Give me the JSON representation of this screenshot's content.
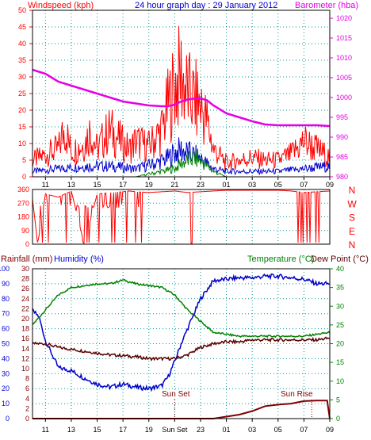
{
  "title": "24 hour graph day : 29 January 2012",
  "colors": {
    "wind": "#ff0000",
    "wind_avg": "#0000cc",
    "wind_low": "#008000",
    "barometer": "#e600e6",
    "direction": "#ff0000",
    "rain": "#800000",
    "humidity": "#0000cc",
    "temperature": "#008000",
    "dewpoint": "#5a0000",
    "title": "#0000cc",
    "grid": "#009999",
    "axis": "#000000",
    "sun_marker": "#800000"
  },
  "time_ticks": [
    "11",
    "13",
    "15",
    "17",
    "19",
    "21",
    "23",
    "01",
    "03",
    "05",
    "07",
    "09"
  ],
  "panel_wind": {
    "left_label": "Windspeed (kph)",
    "right_label": "Barometer (hba)",
    "left_ticks": [
      "0",
      "5",
      "10",
      "15",
      "20",
      "25",
      "30",
      "35",
      "40",
      "45",
      "50"
    ],
    "right_ticks": [
      "980",
      "985",
      "990",
      "995",
      "1000",
      "1005",
      "1010",
      "1015",
      "1020"
    ]
  },
  "panel_direction": {
    "left_ticks": [
      "0",
      "90",
      "180",
      "270",
      "360"
    ],
    "compass": [
      "N",
      "W",
      "S",
      "E",
      "N"
    ]
  },
  "panel_bottom": {
    "rain_label": "Rainfall (mm)",
    "humidity_label": "Humidity (%)",
    "temp_label": "Temperature (°C)",
    "dew_label": "Dew Point (°C)",
    "humidity_ticks": [
      "0",
      "10",
      "20",
      "30",
      "40",
      "50",
      "60",
      "70",
      "80",
      "90",
      "100"
    ],
    "rain_ticks": [
      "0",
      "2",
      "4",
      "6",
      "8",
      "10",
      "12",
      "14",
      "16",
      "18",
      "20",
      "22",
      "24",
      "26",
      "28",
      "30"
    ],
    "temp_ticks": [
      "0",
      "5",
      "10",
      "15",
      "20",
      "25",
      "30",
      "35",
      "40"
    ],
    "sunset_label": "Sun Set",
    "sunrise_label": "Sun Rise",
    "sunset_axis_label": "Sun Set",
    "bottom_ticks": [
      "11",
      "13",
      "15",
      "17",
      "19",
      "Sun Set",
      "23",
      "01",
      "03",
      "05",
      "07",
      "09"
    ]
  },
  "chart_data": [
    {
      "type": "line",
      "title": "24 hour graph day : 29 January 2012",
      "ylabel": "Windspeed (kph)",
      "y2label": "Barometer (hba)",
      "x_unit": "hour",
      "ylim": [
        0,
        50
      ],
      "y2lim": [
        980,
        1022
      ],
      "series": [
        {
          "name": "Windspeed (kph)",
          "axis": "left",
          "x": [
            10.0,
            11.0,
            12.0,
            12.5,
            13.0,
            14.0,
            14.5,
            15.0,
            15.5,
            16.0,
            17.0,
            17.5,
            18.0,
            19.0,
            20.0,
            20.5,
            21.0,
            21.5,
            22.0,
            23.0,
            23.5,
            24.0,
            25.0,
            26.0,
            27.0,
            28.0,
            29.0,
            30.0,
            31.0,
            32.0,
            33.0
          ],
          "y": [
            6,
            8,
            10,
            18,
            9,
            12,
            17,
            10,
            14,
            17,
            12,
            10,
            13,
            11,
            17,
            26,
            33,
            37,
            30,
            26,
            20,
            10,
            5,
            6,
            7,
            6,
            6,
            8,
            13,
            10,
            7
          ]
        },
        {
          "name": "Average wind",
          "axis": "left",
          "x": [
            10.0,
            12.0,
            14.0,
            16.0,
            18.0,
            19.5,
            20.5,
            21.0,
            21.5,
            22.0,
            23.0,
            23.5,
            24.0,
            25.0,
            27.0,
            29.0,
            31.0,
            33.0
          ],
          "y": [
            2,
            3,
            4,
            4,
            3,
            5,
            7,
            9,
            10,
            9,
            7,
            5,
            3,
            2,
            2,
            2,
            3,
            4
          ]
        },
        {
          "name": "Wind low",
          "axis": "left",
          "x": [
            10.0,
            15.0,
            18.0,
            19.0,
            20.0,
            21.0,
            21.5,
            22.0,
            22.5,
            23.0,
            23.5,
            24.0,
            25.0,
            33.0
          ],
          "y": [
            0,
            0,
            0,
            1,
            2,
            3,
            5,
            6,
            7,
            6,
            4,
            2,
            0,
            0
          ]
        },
        {
          "name": "Barometer (hba)",
          "axis": "right",
          "x": [
            10.0,
            11.0,
            12.0,
            13.0,
            14.0,
            15.0,
            16.0,
            17.0,
            18.0,
            19.0,
            20.0,
            20.5,
            21.0,
            21.5,
            22.0,
            22.5,
            23.0,
            23.5,
            24.0,
            25.0,
            26.0,
            27.0,
            28.0,
            29.0,
            30.0,
            31.0,
            32.0,
            33.0
          ],
          "y": [
            1007,
            1006,
            1004,
            1003,
            1002,
            1001,
            1000,
            999,
            998.5,
            998,
            997.8,
            997.8,
            998.2,
            999,
            999.5,
            999.7,
            999.8,
            999.3,
            998,
            996,
            995,
            994,
            993.2,
            993,
            993,
            993,
            993,
            992.8
          ]
        }
      ]
    },
    {
      "type": "scatter",
      "ylabel": "Wind direction",
      "ylim": [
        0,
        360
      ],
      "series": [
        {
          "name": "Wind direction",
          "x": [
            10.0,
            10.4,
            11.0,
            12.0,
            13.0,
            14.0,
            15.0,
            16.0,
            17.0,
            17.5,
            18.0,
            19.0,
            20.0,
            21.0,
            22.0,
            23.0,
            24.0,
            25.0,
            26.0,
            27.0,
            28.0,
            29.0,
            30.0,
            31.0,
            32.0,
            33.0
          ],
          "y": [
            300,
            0,
            330,
            310,
            350,
            0,
            330,
            340,
            345,
            350,
            345,
            340,
            345,
            350,
            340,
            345,
            350,
            355,
            355,
            355,
            355,
            355,
            350,
            340,
            345,
            350
          ]
        }
      ]
    },
    {
      "type": "line",
      "ylabel": "Humidity (%)",
      "y2label": "Temperature (°C)",
      "ylim": [
        0,
        100
      ],
      "y2lim": [
        0,
        40
      ],
      "rain_ylim": [
        0,
        30
      ],
      "series": [
        {
          "name": "Humidity (%)",
          "axis": "humidity",
          "x": [
            10.0,
            10.5,
            11.0,
            12.0,
            13.0,
            14.0,
            15.0,
            16.0,
            17.0,
            18.0,
            19.0,
            20.0,
            20.5,
            21.0,
            21.5,
            22.0,
            23.0,
            24.0,
            25.0,
            26.0,
            27.0,
            28.0,
            29.0,
            30.0,
            31.0,
            32.0,
            33.0
          ],
          "y": [
            72,
            68,
            52,
            34,
            32,
            27,
            23,
            21,
            23,
            21,
            20,
            22,
            28,
            38,
            50,
            60,
            80,
            92,
            93,
            94,
            94,
            95,
            95,
            94,
            93,
            90,
            90
          ]
        },
        {
          "name": "Rainfall (mm)",
          "axis": "rain",
          "x": [
            10.0,
            24.0,
            25.0,
            26.0,
            27.0,
            28.0,
            29.0,
            30.0,
            31.0,
            32.0,
            32.8,
            33.0
          ],
          "y": [
            0,
            0,
            0.4,
            0.8,
            1.5,
            2.5,
            2.8,
            3.0,
            3.5,
            3.6,
            3.6,
            0
          ]
        },
        {
          "name": "Temperature (°C)",
          "axis": "temperature",
          "x": [
            10.0,
            11.0,
            12.0,
            13.0,
            14.0,
            15.0,
            16.0,
            17.0,
            18.0,
            19.0,
            20.0,
            21.0,
            22.0,
            23.0,
            24.0,
            25.0,
            26.0,
            27.0,
            28.0,
            29.0,
            30.0,
            31.0,
            32.0,
            33.0
          ],
          "y": [
            25,
            29,
            33,
            35,
            35.5,
            36,
            36,
            37,
            36,
            35.5,
            35,
            33,
            29,
            26,
            23,
            22.5,
            22,
            22,
            22,
            22,
            22,
            22,
            22.5,
            23
          ]
        },
        {
          "name": "Dew Point (°C)",
          "axis": "temperature",
          "x": [
            10.0,
            11.0,
            12.0,
            13.0,
            14.0,
            15.0,
            16.0,
            17.0,
            18.0,
            19.0,
            20.0,
            21.0,
            22.0,
            23.0,
            24.0,
            25.0,
            26.0,
            27.0,
            28.0,
            29.0,
            30.0,
            31.0,
            32.0,
            33.0
          ],
          "y": [
            20,
            20,
            19,
            18.5,
            18,
            17.5,
            17,
            16.8,
            16.5,
            16,
            16,
            16,
            17,
            19,
            20,
            20.5,
            20.5,
            21,
            21,
            21,
            21,
            21,
            21,
            21.5
          ]
        }
      ]
    }
  ]
}
